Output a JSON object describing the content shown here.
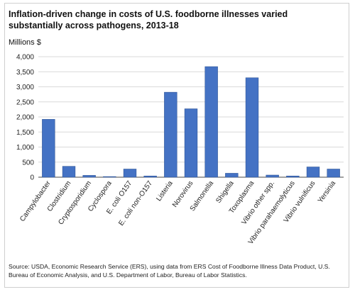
{
  "title": "Inflation-driven change in costs of U.S. foodborne illnesses varied substantially across pathogens, 2013-18",
  "source": "Source: USDA, Economic Research Service (ERS), using data from ERS Cost of Foodborne Illness Data Product, U.S. Bureau of Economic Analysis, and U.S. Department of Labor, Bureau of Labor Statistics.",
  "colors": {
    "bar": "#4472c4",
    "bar_stroke": "#2f5597",
    "grid": "#d9d9d9",
    "axis": "#444444"
  },
  "chart_data": {
    "type": "bar",
    "title": "Inflation-driven change in costs of U.S. foodborne illnesses varied substantially across pathogens, 2013-18",
    "ylabel": "Millions $",
    "xlabel": "",
    "ylim": [
      0,
      4000
    ],
    "yticks": [
      0,
      500,
      1000,
      1500,
      2000,
      2500,
      3000,
      3500,
      4000
    ],
    "ytick_labels": [
      "0",
      "500",
      "1,000",
      "1,500",
      "2,000",
      "2,500",
      "3,000",
      "3,500",
      "4,000"
    ],
    "grid": true,
    "categories": [
      "Campylobacter",
      "Clostridium",
      "Cryptosporidium",
      "Cyclospora",
      "E. coli O157",
      "E. coli non-O157",
      "Listeria",
      "Norovirus",
      "Salmonella",
      "Shigella",
      "Toxoplasma",
      "Vibrio other spp.",
      "Vibrio parahaemolyticus",
      "Vibrio vulnificus",
      "Yersinia"
    ],
    "values": [
      1920,
      360,
      60,
      20,
      270,
      40,
      2820,
      2270,
      3670,
      130,
      3300,
      70,
      40,
      340,
      270
    ]
  }
}
